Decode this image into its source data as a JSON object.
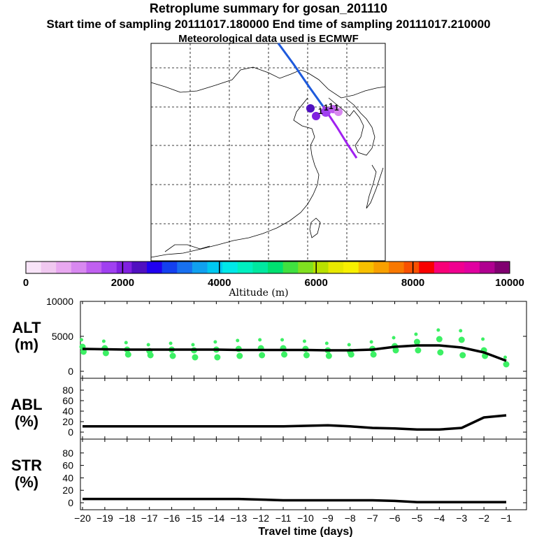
{
  "header": {
    "title": "Retroplume summary for gosan_201110",
    "line2": "Start time of sampling 20111017.180000     End time of sampling 20111017.210000",
    "line3": "Meteorological data used is ECMWF"
  },
  "map": {
    "labels": [
      "1",
      "1",
      "1",
      "1"
    ],
    "track_colors": [
      "#1e5adc",
      "#a020f0"
    ]
  },
  "colorbar": {
    "ticks": [
      "0",
      "2000",
      "4000",
      "6000",
      "8000",
      "10000"
    ],
    "tick_values": [
      0,
      2000,
      4000,
      6000,
      8000,
      10000
    ],
    "label": "Altitude (m)",
    "colors": [
      "#f8e4f8",
      "#f0c8f0",
      "#e8a8f0",
      "#d888f0",
      "#c060f0",
      "#a040f0",
      "#8020e0",
      "#5010c0",
      "#2000f0",
      "#1440f0",
      "#1870f0",
      "#10a0f0",
      "#00c8f0",
      "#00e8e8",
      "#00f0c0",
      "#00e8a0",
      "#00e070",
      "#40e040",
      "#80e020",
      "#b8e000",
      "#e8e800",
      "#f8f000",
      "#f8c000",
      "#f8a000",
      "#f87800",
      "#f85000",
      "#f80000",
      "#f80078",
      "#f00090",
      "#e000a0",
      "#b00090",
      "#800070"
    ]
  },
  "chart_data": [
    {
      "type": "scatter",
      "panel": "ALT",
      "ylabel": "ALT\n(m)",
      "ylabel_lines": [
        "ALT",
        "(m)"
      ],
      "ylim": [
        0,
        10000
      ],
      "yticks": [
        0,
        5000,
        10000
      ],
      "ytick_labels": [
        "0",
        "5000",
        "10000"
      ],
      "dot_color": "#3cf064",
      "line": {
        "x": [
          -20,
          -19,
          -18,
          -17,
          -16,
          -15,
          -14,
          -13,
          -12,
          -11,
          -10,
          -9,
          -8,
          -7,
          -6,
          -5,
          -4,
          -3,
          -2,
          -1
        ],
        "y": [
          3200,
          3150,
          3100,
          3100,
          3100,
          3100,
          3100,
          3050,
          3050,
          3050,
          3050,
          3000,
          3000,
          3100,
          3500,
          3700,
          3700,
          3400,
          2700,
          1500
        ]
      },
      "points": [
        [
          -20,
          4500
        ],
        [
          -20,
          3500
        ],
        [
          -20,
          2800
        ],
        [
          -19,
          4300
        ],
        [
          -19,
          3300
        ],
        [
          -19,
          2600
        ],
        [
          -18,
          4100
        ],
        [
          -18,
          3100
        ],
        [
          -18,
          2400
        ],
        [
          -17,
          3800
        ],
        [
          -17,
          2900
        ],
        [
          -17,
          2300
        ],
        [
          -16,
          4000
        ],
        [
          -16,
          3100
        ],
        [
          -16,
          2200
        ],
        [
          -15,
          3800
        ],
        [
          -15,
          3000
        ],
        [
          -15,
          2000
        ],
        [
          -14,
          4200
        ],
        [
          -14,
          3100
        ],
        [
          -14,
          2000
        ],
        [
          -13,
          4400
        ],
        [
          -13,
          3200
        ],
        [
          -13,
          2200
        ],
        [
          -12,
          4500
        ],
        [
          -12,
          3300
        ],
        [
          -12,
          2300
        ],
        [
          -11,
          4500
        ],
        [
          -11,
          3300
        ],
        [
          -11,
          2400
        ],
        [
          -10,
          4300
        ],
        [
          -10,
          3200
        ],
        [
          -10,
          2300
        ],
        [
          -9,
          4000
        ],
        [
          -9,
          3000
        ],
        [
          -9,
          2200
        ],
        [
          -8,
          3800
        ],
        [
          -8,
          2800
        ],
        [
          -8,
          2400
        ],
        [
          -7,
          4200
        ],
        [
          -7,
          3200
        ],
        [
          -7,
          2400
        ],
        [
          -6,
          4800
        ],
        [
          -6,
          3600
        ],
        [
          -6,
          3000
        ],
        [
          -5,
          5300
        ],
        [
          -5,
          4200
        ],
        [
          -5,
          3000
        ],
        [
          -4,
          5900
        ],
        [
          -4,
          4600
        ],
        [
          -4,
          2700
        ],
        [
          -3,
          5800
        ],
        [
          -3,
          4500
        ],
        [
          -3,
          2300
        ],
        [
          -2,
          4600
        ],
        [
          -2,
          3000
        ],
        [
          -2,
          2200
        ],
        [
          -1,
          2000
        ],
        [
          -1,
          1000
        ]
      ]
    },
    {
      "type": "line",
      "panel": "ABL",
      "ylabel": "ABL\n(%)",
      "ylabel_lines": [
        "ABL",
        "(%)"
      ],
      "ylim": [
        0,
        100
      ],
      "yticks": [
        0,
        20,
        40,
        60,
        80
      ],
      "ytick_labels": [
        "0",
        "20",
        "40",
        "60",
        "80"
      ],
      "x": [
        -20,
        -19,
        -18,
        -17,
        -16,
        -15,
        -14,
        -13,
        -12,
        -11,
        -10,
        -9,
        -8,
        -7,
        -6,
        -5,
        -4,
        -3,
        -2,
        -1
      ],
      "y": [
        11,
        11,
        11,
        11,
        11,
        11,
        11,
        11,
        11,
        11,
        12,
        13,
        11,
        8,
        7,
        5,
        5,
        8,
        28,
        32
      ]
    },
    {
      "type": "line",
      "panel": "STR",
      "ylabel": "STR\n(%)",
      "ylabel_lines": [
        "STR",
        "(%)"
      ],
      "ylim": [
        0,
        100
      ],
      "yticks": [
        0,
        20,
        40,
        60,
        80
      ],
      "ytick_labels": [
        "0",
        "20",
        "40",
        "60",
        "80"
      ],
      "x": [
        -20,
        -19,
        -18,
        -17,
        -16,
        -15,
        -14,
        -13,
        -12,
        -11,
        -10,
        -9,
        -8,
        -7,
        -6,
        -5,
        -4,
        -3,
        -2,
        -1
      ],
      "y": [
        6,
        6,
        6,
        6,
        6,
        6,
        6,
        6,
        5,
        4,
        4,
        4,
        4,
        4,
        3,
        1,
        1,
        1,
        1,
        1
      ],
      "xlabel": "Travel time (days)",
      "xticks": [
        -20,
        -19,
        -18,
        -17,
        -16,
        -15,
        -14,
        -13,
        -12,
        -11,
        -10,
        -9,
        -8,
        -7,
        -6,
        -5,
        -4,
        -3,
        -2,
        -1
      ],
      "xtick_labels": [
        "−20",
        "−19",
        "−18",
        "−17",
        "−16",
        "−15",
        "−14",
        "−13",
        "−12",
        "−11",
        "−10",
        "−9",
        "−8",
        "−7",
        "−6",
        "−5",
        "−4",
        "−3",
        "−2",
        "−1"
      ],
      "xlim": [
        -20,
        -1
      ]
    }
  ]
}
